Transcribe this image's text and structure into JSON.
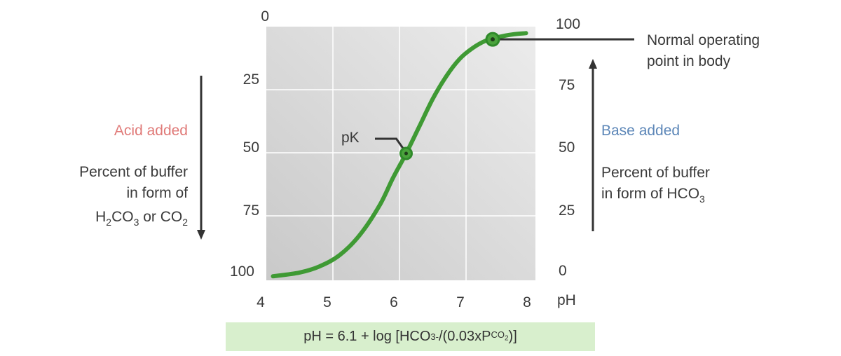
{
  "chart_data": {
    "type": "line",
    "x_ticks": [
      "4",
      "5",
      "6",
      "7",
      "8"
    ],
    "x_label": "pH",
    "xlim": [
      4,
      8
    ],
    "left_ticks": [
      "0",
      "25",
      "50",
      "75",
      "100"
    ],
    "right_ticks": [
      "100",
      "75",
      "50",
      "25",
      "0"
    ],
    "ylim": [
      0,
      100
    ],
    "grid": true,
    "series": [
      {
        "color": "#3f9a34",
        "x": [
          4.1,
          4.5,
          4.8,
          5.1,
          5.4,
          5.7,
          5.9,
          6.1,
          6.3,
          6.5,
          6.7,
          6.9,
          7.1,
          7.3,
          7.5,
          7.7,
          7.9
        ],
        "y": [
          0.5,
          2,
          4.5,
          9,
          17,
          29,
          40,
          50,
          61,
          72,
          81,
          88,
          92.5,
          95.5,
          97,
          98,
          98.5
        ]
      }
    ],
    "points": [
      {
        "name": "pK",
        "x": 6.1,
        "y": 50
      },
      {
        "name": "Normal operating point in body",
        "x": 7.4,
        "y": 96
      }
    ],
    "annotations": {
      "pk": "pK",
      "normal_line1": "Normal operating",
      "normal_line2": "point in body"
    }
  },
  "left_panel": {
    "title": "Acid added",
    "title_color": "#e07a78",
    "line1": "Percent of buffer",
    "line2": "in form of",
    "line3_a": "H",
    "line3_sub1": "2",
    "line3_b": "CO",
    "line3_sub2": "3",
    "line3_c": " or CO",
    "line3_sub3": "2",
    "arrow": "down"
  },
  "right_panel": {
    "title": "Base added",
    "title_color": "#5d87b8",
    "line1": "Percent of buffer",
    "line2_a": "in form of HCO",
    "line2_sub": "3",
    "arrow": "up"
  },
  "equation": {
    "part1": "pH = 6.1 + log [HCO",
    "sub1": "3",
    "sup1": "-",
    "part2": "/(0.03xP",
    "sub2a": "CO",
    "sub2b": "2",
    "part3": ")]"
  }
}
